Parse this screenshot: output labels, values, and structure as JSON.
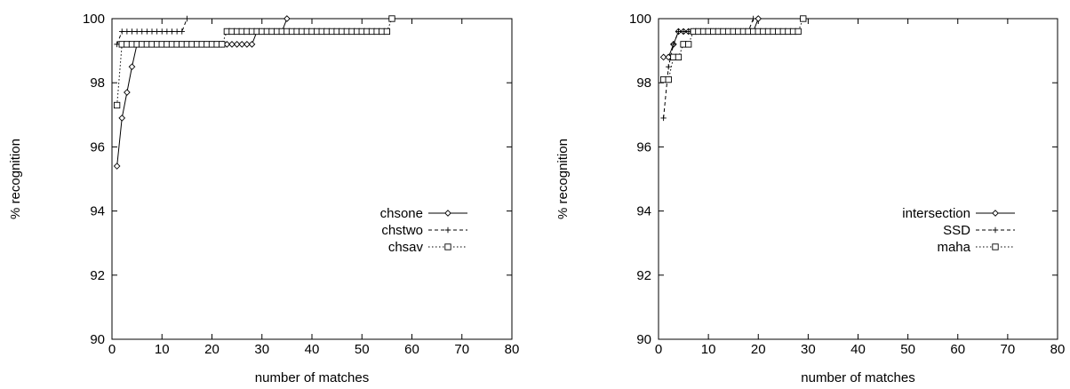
{
  "chart_data": [
    {
      "type": "line",
      "xlabel": "number of matches",
      "ylabel": "% recognition",
      "xlim": [
        0,
        80
      ],
      "ylim": [
        90,
        100
      ],
      "x_ticks": [
        "0",
        "10",
        "20",
        "30",
        "40",
        "50",
        "60",
        "70",
        "80"
      ],
      "y_ticks": [
        "90",
        "92",
        "94",
        "96",
        "98",
        "100"
      ],
      "grid": false,
      "legend_position": "right-middle",
      "series": [
        {
          "name": "chsone",
          "marker": "diamond",
          "dash": "solid",
          "x": [
            1,
            2,
            3,
            4,
            5,
            6,
            7,
            8,
            9,
            10,
            11,
            12,
            13,
            14,
            15,
            16,
            17,
            18,
            19,
            20,
            21,
            22,
            23,
            24,
            25,
            26,
            27,
            28,
            29,
            30,
            31,
            32,
            33,
            34,
            35
          ],
          "y": [
            95.4,
            96.9,
            97.7,
            98.5,
            99.2,
            99.2,
            99.2,
            99.2,
            99.2,
            99.2,
            99.2,
            99.2,
            99.2,
            99.2,
            99.2,
            99.2,
            99.2,
            99.2,
            99.2,
            99.2,
            99.2,
            99.2,
            99.2,
            99.2,
            99.2,
            99.2,
            99.2,
            99.2,
            99.6,
            99.6,
            99.6,
            99.6,
            99.6,
            99.6,
            100
          ]
        },
        {
          "name": "chstwo",
          "marker": "plus",
          "dash": "dashed",
          "x": [
            1,
            2,
            3,
            4,
            5,
            6,
            7,
            8,
            9,
            10,
            11,
            12,
            13,
            14,
            15
          ],
          "y": [
            99.2,
            99.6,
            99.6,
            99.6,
            99.6,
            99.6,
            99.6,
            99.6,
            99.6,
            99.6,
            99.6,
            99.6,
            99.6,
            99.6,
            100
          ]
        },
        {
          "name": "chsav",
          "marker": "square",
          "dash": "dotted",
          "x": [
            1,
            2,
            3,
            4,
            5,
            6,
            7,
            8,
            9,
            10,
            11,
            12,
            13,
            14,
            15,
            16,
            17,
            18,
            19,
            20,
            21,
            22,
            23,
            24,
            25,
            26,
            27,
            28,
            29,
            30,
            31,
            32,
            33,
            34,
            35,
            36,
            37,
            38,
            39,
            40,
            41,
            42,
            43,
            44,
            45,
            46,
            47,
            48,
            49,
            50,
            51,
            52,
            53,
            54,
            55,
            56
          ],
          "y": [
            97.3,
            99.2,
            99.2,
            99.2,
            99.2,
            99.2,
            99.2,
            99.2,
            99.2,
            99.2,
            99.2,
            99.2,
            99.2,
            99.2,
            99.2,
            99.2,
            99.2,
            99.2,
            99.2,
            99.2,
            99.2,
            99.2,
            99.6,
            99.6,
            99.6,
            99.6,
            99.6,
            99.6,
            99.6,
            99.6,
            99.6,
            99.6,
            99.6,
            99.6,
            99.6,
            99.6,
            99.6,
            99.6,
            99.6,
            99.6,
            99.6,
            99.6,
            99.6,
            99.6,
            99.6,
            99.6,
            99.6,
            99.6,
            99.6,
            99.6,
            99.6,
            99.6,
            99.6,
            99.6,
            99.6,
            100
          ]
        }
      ]
    },
    {
      "type": "line",
      "xlabel": "number of matches",
      "ylabel": "% recognition",
      "xlim": [
        0,
        80
      ],
      "ylim": [
        90,
        100
      ],
      "x_ticks": [
        "0",
        "10",
        "20",
        "30",
        "40",
        "50",
        "60",
        "70",
        "80"
      ],
      "y_ticks": [
        "90",
        "92",
        "94",
        "96",
        "98",
        "100"
      ],
      "grid": false,
      "legend_position": "right-middle",
      "series": [
        {
          "name": "intersection",
          "marker": "diamond",
          "dash": "solid",
          "x": [
            1,
            2,
            3,
            4,
            5,
            6,
            7,
            8,
            9,
            10,
            11,
            12,
            13,
            14,
            15,
            16,
            17,
            18,
            19,
            20
          ],
          "y": [
            98.8,
            98.8,
            99.2,
            99.6,
            99.6,
            99.6,
            99.6,
            99.6,
            99.6,
            99.6,
            99.6,
            99.6,
            99.6,
            99.6,
            99.6,
            99.6,
            99.6,
            99.6,
            99.6,
            100
          ]
        },
        {
          "name": "SSD",
          "marker": "plus",
          "dash": "dashed",
          "x": [
            1,
            2,
            3,
            4,
            5,
            6,
            7,
            8,
            9,
            10,
            11,
            12,
            13,
            14,
            15,
            16,
            17,
            18,
            19
          ],
          "y": [
            96.9,
            98.5,
            99.2,
            99.6,
            99.6,
            99.6,
            99.6,
            99.6,
            99.6,
            99.6,
            99.6,
            99.6,
            99.6,
            99.6,
            99.6,
            99.6,
            99.6,
            99.6,
            100
          ]
        },
        {
          "name": "maha",
          "marker": "square",
          "dash": "dotted",
          "x": [
            1,
            2,
            3,
            4,
            5,
            6,
            7,
            8,
            9,
            10,
            11,
            12,
            13,
            14,
            15,
            16,
            17,
            18,
            19,
            20,
            21,
            22,
            23,
            24,
            25,
            26,
            27,
            28,
            29
          ],
          "y": [
            98.1,
            98.1,
            98.8,
            98.8,
            99.2,
            99.2,
            99.6,
            99.6,
            99.6,
            99.6,
            99.6,
            99.6,
            99.6,
            99.6,
            99.6,
            99.6,
            99.6,
            99.6,
            99.6,
            99.6,
            99.6,
            99.6,
            99.6,
            99.6,
            99.6,
            99.6,
            99.6,
            99.6,
            100
          ]
        }
      ]
    }
  ]
}
